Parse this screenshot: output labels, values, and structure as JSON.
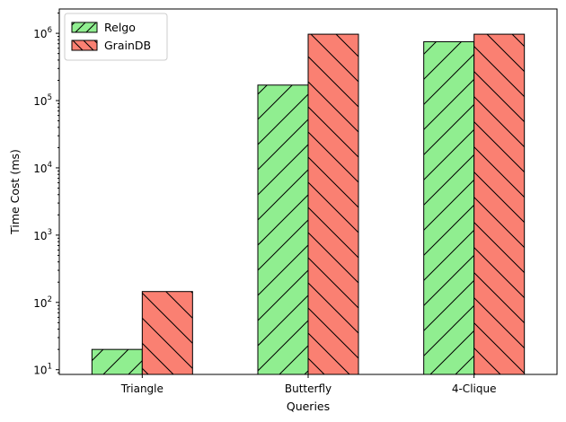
{
  "chart_data": {
    "type": "bar",
    "title": "",
    "xlabel": "Queries",
    "ylabel": "Time Cost (ms)",
    "yscale": "log",
    "ylim": [
      8.5,
      2300000
    ],
    "categories": [
      "Triangle",
      "Butterfly",
      "4-Clique"
    ],
    "yticks": [
      10,
      100,
      1000,
      10000,
      100000,
      1000000
    ],
    "ytick_labels": [
      {
        "base": "10",
        "exp": "1"
      },
      {
        "base": "10",
        "exp": "2"
      },
      {
        "base": "10",
        "exp": "3"
      },
      {
        "base": "10",
        "exp": "4"
      },
      {
        "base": "10",
        "exp": "5"
      },
      {
        "base": "10",
        "exp": "6"
      }
    ],
    "series": [
      {
        "name": "Relgo",
        "values": [
          20,
          170000,
          750000
        ],
        "color": "#90ee90",
        "hatch": "forward"
      },
      {
        "name": "GrainDB",
        "values": [
          145,
          970000,
          970000
        ],
        "color": "#fa8072",
        "hatch": "back"
      }
    ],
    "legend": "top-left",
    "grid": false
  }
}
